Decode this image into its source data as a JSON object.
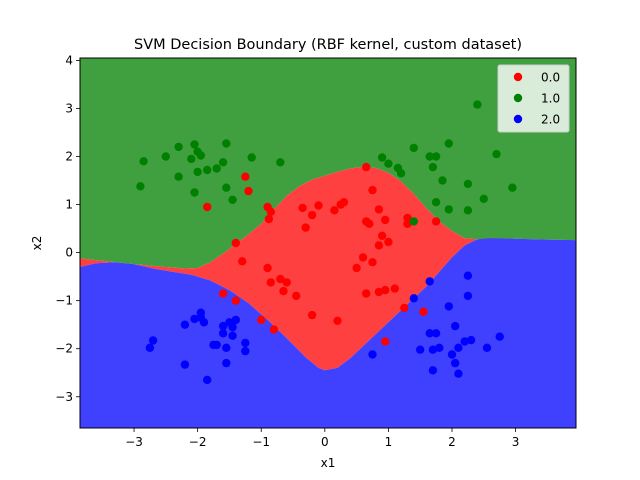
{
  "chart_data": {
    "type": "scatter",
    "title": "SVM Decision Boundary (RBF kernel, custom dataset)",
    "xlabel": "x1",
    "ylabel": "x2",
    "xlim": [
      -3.85,
      3.95
    ],
    "ylim": [
      -3.65,
      4.05
    ],
    "xticks": [
      -3,
      -2,
      -1,
      0,
      1,
      2,
      3
    ],
    "yticks": [
      -3,
      -2,
      -1,
      0,
      1,
      2,
      3,
      4
    ],
    "grid": false,
    "legend_position": "top-right",
    "regions": [
      {
        "class": "1.0",
        "color": "#40a040"
      },
      {
        "class": "0.0",
        "color": "#ff4040"
      },
      {
        "class": "2.0",
        "color": "#4040ff"
      }
    ],
    "boundary_upper": [
      [
        -3.85,
        -0.12
      ],
      [
        -3.5,
        -0.17
      ],
      [
        -3.0,
        -0.24
      ],
      [
        -2.5,
        -0.3
      ],
      [
        -2.2,
        -0.33
      ],
      [
        -2.0,
        -0.32
      ],
      [
        -1.8,
        -0.2
      ],
      [
        -1.6,
        -0.02
      ],
      [
        -1.4,
        0.18
      ],
      [
        -1.2,
        0.38
      ],
      [
        -1.0,
        0.6
      ],
      [
        -0.8,
        0.9
      ],
      [
        -0.6,
        1.18
      ],
      [
        -0.4,
        1.38
      ],
      [
        -0.2,
        1.52
      ],
      [
        0.0,
        1.6
      ],
      [
        0.2,
        1.68
      ],
      [
        0.4,
        1.75
      ],
      [
        0.6,
        1.79
      ],
      [
        0.8,
        1.76
      ],
      [
        1.0,
        1.66
      ],
      [
        1.2,
        1.48
      ],
      [
        1.4,
        1.22
      ],
      [
        1.6,
        0.92
      ],
      [
        1.8,
        0.65
      ],
      [
        2.0,
        0.45
      ],
      [
        2.2,
        0.3
      ],
      [
        2.4,
        0.28
      ],
      [
        2.6,
        0.29
      ],
      [
        3.0,
        0.29
      ],
      [
        3.5,
        0.27
      ],
      [
        3.95,
        0.26
      ]
    ],
    "boundary_lower": [
      [
        -3.85,
        -0.3
      ],
      [
        -3.6,
        -0.22
      ],
      [
        -3.3,
        -0.2
      ],
      [
        -3.0,
        -0.24
      ],
      [
        -2.7,
        -0.33
      ],
      [
        -2.4,
        -0.4
      ],
      [
        -2.1,
        -0.46
      ],
      [
        -1.8,
        -0.58
      ],
      [
        -1.5,
        -0.78
      ],
      [
        -1.2,
        -1.05
      ],
      [
        -0.9,
        -1.4
      ],
      [
        -0.6,
        -1.78
      ],
      [
        -0.3,
        -2.18
      ],
      [
        -0.1,
        -2.4
      ],
      [
        0.0,
        -2.45
      ],
      [
        0.2,
        -2.4
      ],
      [
        0.4,
        -2.2
      ],
      [
        0.6,
        -1.95
      ],
      [
        0.8,
        -1.7
      ],
      [
        1.0,
        -1.45
      ],
      [
        1.2,
        -1.2
      ],
      [
        1.4,
        -0.95
      ],
      [
        1.6,
        -0.7
      ],
      [
        1.8,
        -0.4
      ],
      [
        2.0,
        -0.1
      ],
      [
        2.2,
        0.15
      ],
      [
        2.4,
        0.28
      ],
      [
        2.6,
        0.3
      ],
      [
        3.0,
        0.29
      ],
      [
        3.5,
        0.27
      ],
      [
        3.95,
        0.26
      ]
    ],
    "series": [
      {
        "name": "0.0",
        "color": "#ff0000",
        "points": [
          [
            -1.85,
            0.95
          ],
          [
            -1.25,
            1.58
          ],
          [
            -1.2,
            1.28
          ],
          [
            -0.9,
            0.95
          ],
          [
            -0.85,
            0.85
          ],
          [
            -0.88,
            0.7
          ],
          [
            -0.35,
            0.93
          ],
          [
            -0.2,
            0.78
          ],
          [
            -0.1,
            0.98
          ],
          [
            0.15,
            0.88
          ],
          [
            0.25,
            1.0
          ],
          [
            0.3,
            1.05
          ],
          [
            0.65,
            1.78
          ],
          [
            0.75,
            1.3
          ],
          [
            0.85,
            0.9
          ],
          [
            0.9,
            0.35
          ],
          [
            0.95,
            0.68
          ],
          [
            1.3,
            0.72
          ],
          [
            1.75,
            0.65
          ],
          [
            1.3,
            0.6
          ],
          [
            -1.4,
            0.2
          ],
          [
            -1.3,
            -0.18
          ],
          [
            -0.9,
            -0.32
          ],
          [
            -0.85,
            -0.62
          ],
          [
            -0.7,
            -0.55
          ],
          [
            -0.65,
            -0.8
          ],
          [
            -0.6,
            -0.62
          ],
          [
            -0.45,
            -0.9
          ],
          [
            -0.3,
            0.52
          ],
          [
            -0.2,
            -1.3
          ],
          [
            0.2,
            -1.42
          ],
          [
            0.5,
            -0.32
          ],
          [
            0.6,
            -0.1
          ],
          [
            0.65,
            0.65
          ],
          [
            0.7,
            0.6
          ],
          [
            0.75,
            -0.2
          ],
          [
            0.85,
            0.15
          ],
          [
            0.65,
            -0.85
          ],
          [
            0.85,
            -0.82
          ],
          [
            0.95,
            -0.78
          ],
          [
            1.0,
            0.22
          ],
          [
            1.1,
            -0.75
          ],
          [
            1.25,
            -1.15
          ],
          [
            1.55,
            -1.23
          ],
          [
            0.95,
            -1.85
          ],
          [
            -1.6,
            -0.85
          ],
          [
            -1.4,
            -1.0
          ],
          [
            -1.0,
            -1.4
          ],
          [
            -0.8,
            -1.6
          ]
        ]
      },
      {
        "name": "1.0",
        "color": "#008000",
        "points": [
          [
            -2.85,
            1.9
          ],
          [
            -2.9,
            1.38
          ],
          [
            -2.5,
            2.0
          ],
          [
            -2.3,
            2.2
          ],
          [
            -2.3,
            1.58
          ],
          [
            -2.1,
            1.95
          ],
          [
            -2.05,
            2.25
          ],
          [
            -2.0,
            2.1
          ],
          [
            -1.95,
            2.02
          ],
          [
            -2.0,
            1.68
          ],
          [
            -2.05,
            1.25
          ],
          [
            -1.85,
            1.72
          ],
          [
            -1.7,
            1.75
          ],
          [
            -1.6,
            1.88
          ],
          [
            -1.55,
            2.27
          ],
          [
            -1.55,
            1.35
          ],
          [
            -1.45,
            1.1
          ],
          [
            -1.15,
            1.98
          ],
          [
            -0.7,
            1.88
          ],
          [
            0.9,
            1.98
          ],
          [
            1.0,
            1.85
          ],
          [
            1.15,
            1.76
          ],
          [
            1.2,
            1.65
          ],
          [
            1.4,
            2.18
          ],
          [
            1.65,
            2.0
          ],
          [
            1.7,
            1.78
          ],
          [
            1.75,
            2.0
          ],
          [
            1.75,
            1.05
          ],
          [
            1.85,
            1.5
          ],
          [
            1.95,
            2.27
          ],
          [
            1.95,
            0.9
          ],
          [
            2.25,
            0.88
          ],
          [
            2.25,
            1.43
          ],
          [
            2.4,
            3.08
          ],
          [
            2.5,
            1.12
          ],
          [
            2.7,
            2.05
          ],
          [
            2.95,
            1.35
          ],
          [
            1.4,
            0.65
          ]
        ]
      },
      {
        "name": "2.0",
        "color": "#0000ff",
        "points": [
          [
            -2.75,
            -1.98
          ],
          [
            -2.7,
            -1.83
          ],
          [
            -2.2,
            -1.5
          ],
          [
            -2.2,
            -2.33
          ],
          [
            -2.05,
            -1.38
          ],
          [
            -1.95,
            -1.25
          ],
          [
            -1.95,
            -1.35
          ],
          [
            -1.9,
            -1.45
          ],
          [
            -1.85,
            -2.65
          ],
          [
            -1.75,
            -1.92
          ],
          [
            -1.7,
            -1.92
          ],
          [
            -1.6,
            -1.68
          ],
          [
            -1.6,
            -1.53
          ],
          [
            -1.55,
            -1.98
          ],
          [
            -1.55,
            -2.3
          ],
          [
            -1.5,
            -1.45
          ],
          [
            -1.45,
            -1.55
          ],
          [
            -1.4,
            -1.4
          ],
          [
            -1.45,
            -1.73
          ],
          [
            -1.25,
            -1.88
          ],
          [
            -1.25,
            -2.05
          ],
          [
            0.75,
            -2.12
          ],
          [
            1.4,
            -0.95
          ],
          [
            1.5,
            -2.02
          ],
          [
            1.65,
            -1.68
          ],
          [
            1.65,
            -0.6
          ],
          [
            1.7,
            -2.02
          ],
          [
            1.75,
            -1.68
          ],
          [
            1.7,
            -2.45
          ],
          [
            1.8,
            -1.98
          ],
          [
            1.95,
            -1.12
          ],
          [
            2.0,
            -2.12
          ],
          [
            2.05,
            -2.3
          ],
          [
            2.05,
            -1.53
          ],
          [
            2.1,
            -1.98
          ],
          [
            2.1,
            -2.52
          ],
          [
            2.2,
            -1.85
          ],
          [
            2.25,
            -0.9
          ],
          [
            2.25,
            -0.48
          ],
          [
            2.3,
            -1.82
          ],
          [
            2.55,
            -1.98
          ],
          [
            2.75,
            -1.75
          ]
        ]
      }
    ]
  }
}
